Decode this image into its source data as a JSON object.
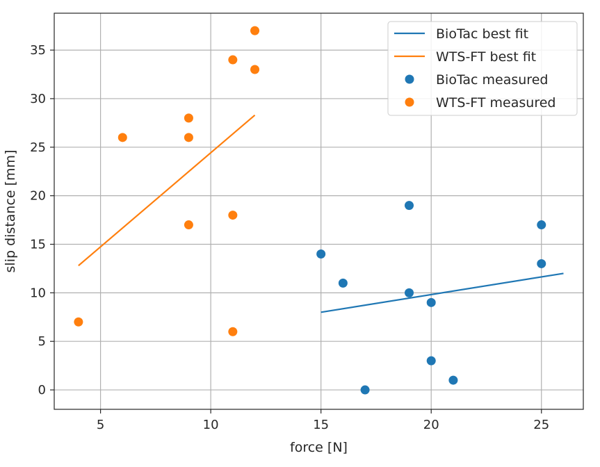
{
  "chart_data": {
    "type": "scatter",
    "title": "",
    "xlabel": "force [N]",
    "ylabel": "slip distance [mm]",
    "xlim": [
      2.9,
      26.9
    ],
    "ylim": [
      -2,
      38.8
    ],
    "xticks": [
      5,
      10,
      15,
      20,
      25
    ],
    "yticks": [
      0,
      5,
      10,
      15,
      20,
      25,
      30,
      35
    ],
    "grid": true,
    "legend_position": "top-right",
    "colors": {
      "biotac": "#1f77b4",
      "wtsft": "#ff7f0e"
    },
    "lines": [
      {
        "name": "BioTac best fit",
        "color": "#1f77b4",
        "points": [
          [
            15,
            8
          ],
          [
            26,
            12
          ]
        ]
      },
      {
        "name": "WTS-FT best fit",
        "color": "#ff7f0e",
        "points": [
          [
            4,
            12.8
          ],
          [
            12,
            28.3
          ]
        ]
      }
    ],
    "series": [
      {
        "name": "BioTac measured",
        "color": "#1f77b4",
        "points": [
          [
            15,
            14
          ],
          [
            16,
            11
          ],
          [
            17,
            0
          ],
          [
            19,
            19
          ],
          [
            19,
            10
          ],
          [
            20,
            9
          ],
          [
            20,
            3
          ],
          [
            21,
            1
          ],
          [
            25,
            17
          ],
          [
            25,
            13
          ]
        ]
      },
      {
        "name": "WTS-FT measured",
        "color": "#ff7f0e",
        "points": [
          [
            4,
            7
          ],
          [
            6,
            26
          ],
          [
            9,
            28
          ],
          [
            9,
            26
          ],
          [
            9,
            17
          ],
          [
            11,
            34
          ],
          [
            11,
            18
          ],
          [
            11,
            6
          ],
          [
            12,
            37
          ],
          [
            12,
            33
          ]
        ]
      }
    ],
    "legend": [
      {
        "label": "BioTac best fit",
        "kind": "line",
        "color": "#1f77b4"
      },
      {
        "label": "WTS-FT best fit",
        "kind": "line",
        "color": "#ff7f0e"
      },
      {
        "label": "BioTac measured",
        "kind": "marker",
        "color": "#1f77b4"
      },
      {
        "label": "WTS-FT measured",
        "kind": "marker",
        "color": "#ff7f0e"
      }
    ]
  }
}
